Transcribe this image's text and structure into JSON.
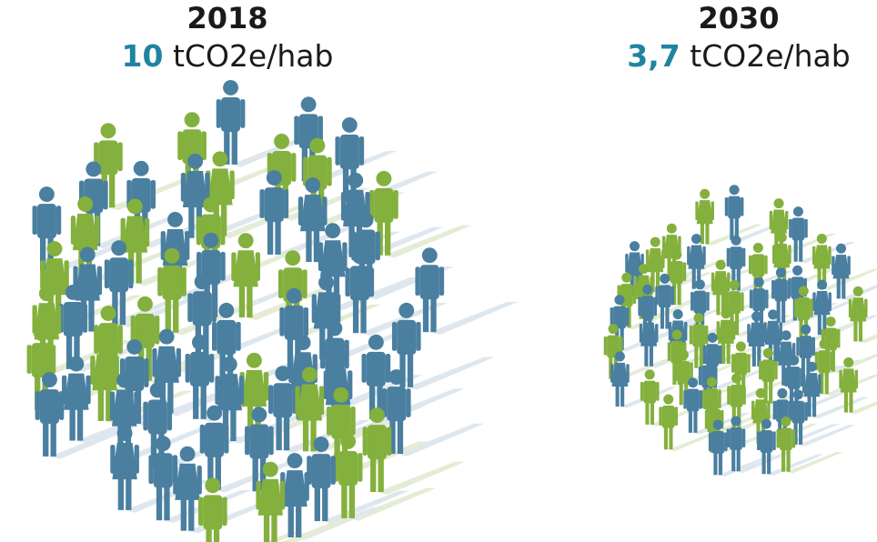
{
  "panels": [
    {
      "year": "2018",
      "value": "10",
      "unit": "tCO2e/hab"
    },
    {
      "year": "2030",
      "value": "3,7",
      "unit": "tCO2e/hab"
    }
  ]
}
